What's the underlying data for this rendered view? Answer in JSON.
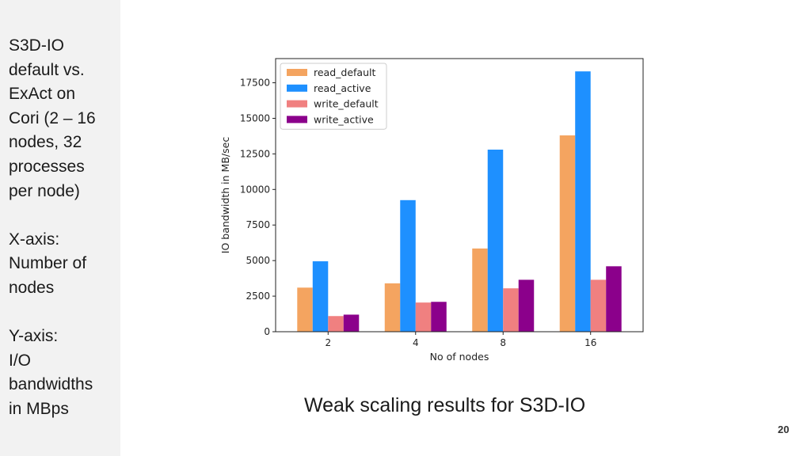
{
  "sidebar": {
    "description_lines": [
      "S3D-IO",
      "default vs.",
      "ExAct on",
      "Cori (2 – 16",
      "nodes, 32",
      "processes",
      "per node)"
    ],
    "xaxis_lines": [
      "X-axis:",
      "Number of",
      "nodes"
    ],
    "yaxis_lines": [
      "Y-axis:",
      "I/O",
      "bandwidths",
      "in MBps"
    ]
  },
  "caption": "Weak scaling results for S3D-IO",
  "page_number": "20",
  "chart_data": {
    "type": "bar",
    "title": "",
    "xlabel": "No of nodes",
    "ylabel": "IO bandwidth in MB/sec",
    "categories": [
      "2",
      "4",
      "8",
      "16"
    ],
    "ylim": [
      0,
      19200
    ],
    "yticks": [
      0,
      2500,
      5000,
      7500,
      10000,
      12500,
      15000,
      17500
    ],
    "grid": false,
    "legend_position": "top-left",
    "series": [
      {
        "name": "read_default",
        "color": "#f4a460",
        "values": [
          3100,
          3400,
          5850,
          13800
        ]
      },
      {
        "name": "read_active",
        "color": "#1e90ff",
        "values": [
          4950,
          9250,
          12800,
          18300
        ]
      },
      {
        "name": "write_default",
        "color": "#f08080",
        "values": [
          1100,
          2050,
          3050,
          3650
        ]
      },
      {
        "name": "write_active",
        "color": "#8b008b",
        "values": [
          1200,
          2100,
          3650,
          4600
        ]
      }
    ]
  }
}
